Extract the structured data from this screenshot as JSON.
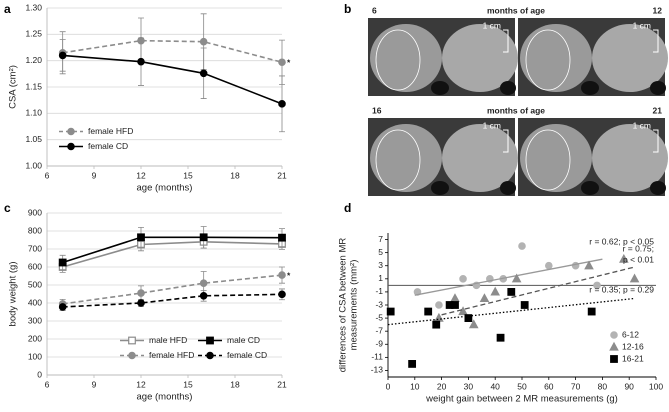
{
  "chart_data": [
    {
      "type": "line",
      "panel_label": "a",
      "xlabel": "age (months)",
      "ylabel": [
        "CSA (cm²)"
      ],
      "xlim": [
        6,
        21
      ],
      "xticks": [
        6,
        9,
        12,
        15,
        18,
        21
      ],
      "ylim": [
        1.0,
        1.3
      ],
      "yticks": [
        {
          "value": 1.0,
          "label": "1.00"
        },
        {
          "value": 1.05,
          "label": "1.05"
        },
        {
          "value": 1.1,
          "label": "1.10"
        },
        {
          "value": 1.15,
          "label": "1.15"
        },
        {
          "value": 1.2,
          "label": "1.20"
        },
        {
          "value": 1.25,
          "label": "1.25"
        },
        {
          "value": 1.3,
          "label": "1.30"
        }
      ],
      "grid": true,
      "legend": "lower left",
      "x": [
        7,
        12,
        16,
        21
      ],
      "series": [
        {
          "name": "female HFD",
          "color": "#8c8c8c",
          "dash": true,
          "marker": "circle",
          "values": [
            1.215,
            1.238,
            1.236,
            1.197
          ],
          "errors": [
            0.04,
            0.043,
            0.053,
            0.042
          ],
          "annotation": "*"
        },
        {
          "name": "female CD",
          "color": "#000000",
          "dash": false,
          "marker": "circle",
          "values": [
            1.21,
            1.198,
            1.176,
            1.118
          ],
          "errors": [
            0.03,
            0.045,
            0.048,
            0.053
          ]
        }
      ]
    },
    {
      "type": "line",
      "panel_label": "c",
      "xlabel": "age (months)",
      "ylabel": [
        "body weight (g)"
      ],
      "xlim": [
        6,
        21
      ],
      "xticks": [
        6,
        9,
        12,
        15,
        18,
        21
      ],
      "ylim": [
        0,
        900
      ],
      "yticks": [
        0,
        100,
        200,
        300,
        400,
        500,
        600,
        700,
        800,
        900
      ],
      "grid": true,
      "legend": "lower right",
      "x": [
        7,
        12,
        16,
        21
      ],
      "series": [
        {
          "name": "male HFD",
          "color": "#8c8c8c",
          "dash": false,
          "marker": "square",
          "marker_fill": "#ffffff",
          "values": [
            600,
            725,
            740,
            728
          ],
          "errors": [
            30,
            35,
            35,
            30
          ]
        },
        {
          "name": "male CD",
          "color": "#000000",
          "dash": false,
          "marker": "square",
          "values": [
            625,
            765,
            765,
            763
          ],
          "errors": [
            40,
            55,
            60,
            50
          ]
        },
        {
          "name": "female HFD",
          "color": "#8c8c8c",
          "dash": true,
          "marker": "circle",
          "values": [
            395,
            455,
            510,
            555
          ],
          "errors": [
            25,
            40,
            65,
            45
          ],
          "annotation": "*"
        },
        {
          "name": "female CD",
          "color": "#000000",
          "dash": true,
          "marker": "circle",
          "values": [
            378,
            400,
            440,
            448
          ],
          "errors": [
            20,
            20,
            30,
            30
          ]
        }
      ]
    },
    {
      "type": "scatter",
      "panel_label": "d",
      "xlabel": "weight gain between 2 MR measurements (g)",
      "ylabel": [
        "differences of CSA between MR",
        "measurements (mm²)"
      ],
      "xlim": [
        0,
        100
      ],
      "xticks": [
        0,
        10,
        20,
        30,
        40,
        50,
        60,
        70,
        80,
        90,
        100
      ],
      "ylim": [
        -14,
        8
      ],
      "yticks": [
        -13,
        -11,
        -9,
        -7,
        -5,
        -3,
        -1,
        1,
        3,
        5,
        7
      ],
      "grid": false,
      "legend": "lower right",
      "series": [
        {
          "name": "6-12",
          "color": "#b3b3b3",
          "marker": "circle",
          "x": [
            11,
            19,
            28,
            33,
            38,
            43,
            50,
            60,
            70,
            78
          ],
          "values": [
            -1,
            -3,
            1,
            0,
            1,
            1,
            6,
            3,
            3,
            0
          ],
          "trend": {
            "x": [
              10,
              80
            ],
            "y": [
              -1.5,
              4
            ],
            "dash": "none"
          },
          "stat_label": [
            "r = 0.62; p < 0.05"
          ]
        },
        {
          "name": "12-16",
          "color": "#8c8c8c",
          "marker": "triangle",
          "x": [
            19,
            24,
            25,
            28,
            32,
            36,
            40,
            48,
            75,
            88,
            92
          ],
          "values": [
            -5,
            -3,
            -2,
            -4,
            -6,
            -2,
            -1,
            1,
            3,
            4,
            1
          ],
          "trend": {
            "x": [
              20,
              92
            ],
            "y": [
              -4.5,
              2.8
            ],
            "dash": "5 3"
          },
          "stat_label": [
            "r = 0.75;",
            "p < 0.01"
          ]
        },
        {
          "name": "16-21",
          "color": "#000000",
          "marker": "square",
          "x": [
            1,
            9,
            15,
            18,
            23,
            25,
            30,
            42,
            46,
            51,
            76
          ],
          "values": [
            -4,
            -12,
            -4,
            -6,
            -3,
            -3,
            -5,
            -8,
            -1,
            -3,
            -4
          ],
          "trend": {
            "x": [
              0,
              92
            ],
            "y": [
              -6,
              -2
            ],
            "dash": "1.5 2"
          },
          "stat_label": [
            "r = 0.35; p = 0.29"
          ]
        }
      ]
    }
  ],
  "image_panel": {
    "panel_label": "b",
    "rows": [
      {
        "left": "6",
        "middle": "months of age",
        "right": "12"
      },
      {
        "left": "16",
        "middle": "months of age",
        "right": "21"
      }
    ],
    "scale_label": "1 cm"
  }
}
